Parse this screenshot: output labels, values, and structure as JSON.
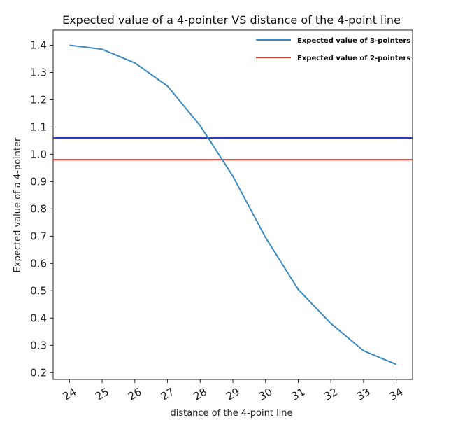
{
  "chart_data": {
    "type": "line",
    "title": "Expected value of a 4-pointer VS distance of the 4-point line",
    "xlabel": "distance of the 4-point line",
    "ylabel": "Expected value of a 4-pointer",
    "x": [
      24,
      25,
      26,
      27,
      28,
      29,
      30,
      31,
      32,
      33,
      34
    ],
    "xlim": [
      23.5,
      34.5
    ],
    "ylim": [
      0.175,
      1.455
    ],
    "yticks": [
      0.2,
      0.3,
      0.4,
      0.5,
      0.6,
      0.7,
      0.8,
      0.9,
      1.0,
      1.1,
      1.2,
      1.3,
      1.4
    ],
    "ytick_labels": [
      "0.2",
      "0.3",
      "0.4",
      "0.5",
      "0.6",
      "0.7",
      "0.8",
      "0.9",
      "1.0",
      "1.1",
      "1.2",
      "1.3",
      "1.4"
    ],
    "xticks": [
      24,
      25,
      26,
      27,
      28,
      29,
      30,
      31,
      32,
      33,
      34
    ],
    "xtick_labels": [
      "24",
      "25",
      "26",
      "27",
      "28",
      "29",
      "30",
      "31",
      "32",
      "33",
      "34"
    ],
    "series": [
      {
        "color": "#3b8bc2",
        "values": [
          1.4,
          1.385,
          1.335,
          1.25,
          1.105,
          0.92,
          0.695,
          0.505,
          0.38,
          0.28,
          0.23
        ]
      }
    ],
    "hlines": [
      {
        "name": "Expected value of 3-pointers",
        "value": 1.06,
        "color": "#2b3bc7"
      },
      {
        "name": "Expected value of 2-pointers",
        "value": 0.98,
        "color": "#e0332b"
      }
    ],
    "legend": {
      "position": "top-right",
      "entries": [
        {
          "label": "Expected value of 3-pointers",
          "color": "#3b8bc2"
        },
        {
          "label": "Expected value of 2-pointers",
          "color": "#e0332b"
        }
      ]
    },
    "grid": false
  }
}
